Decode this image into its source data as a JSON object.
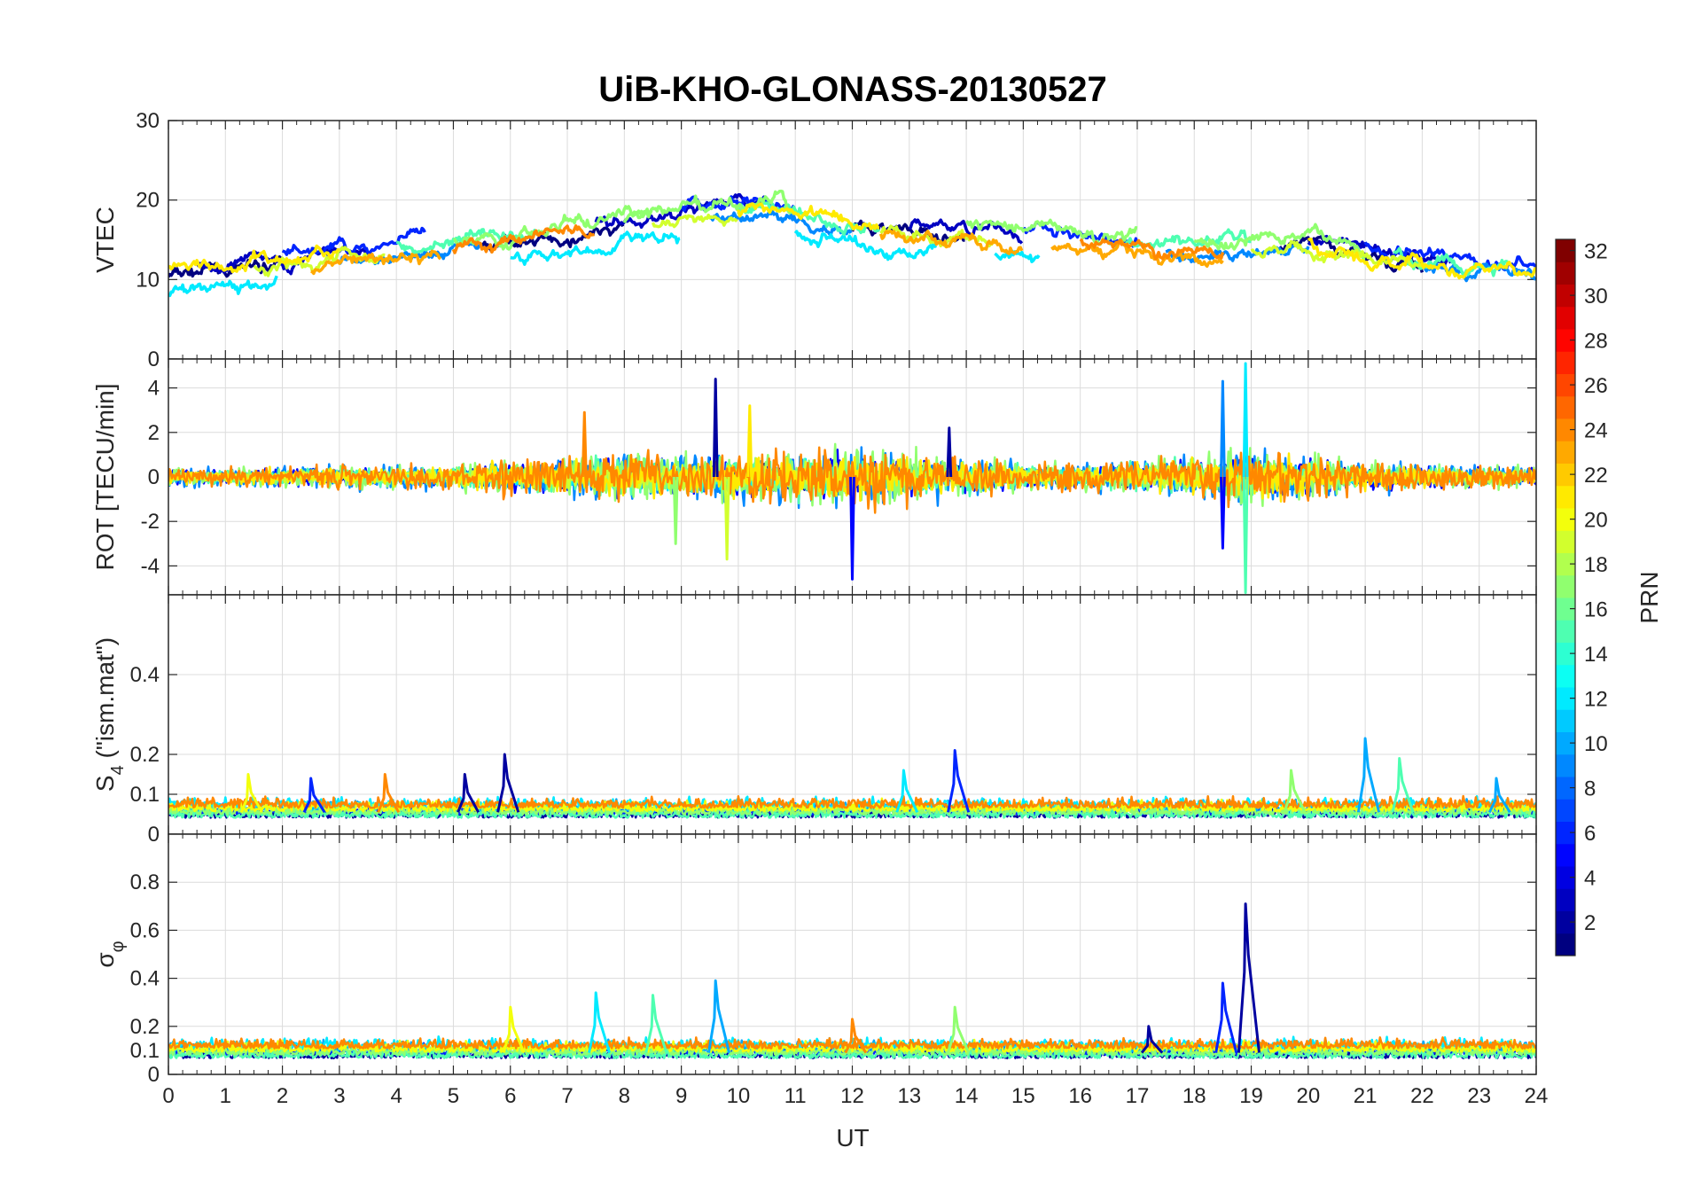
{
  "chart_data": {
    "type": "line",
    "title": "UiB-KHO-GLONASS-20130527",
    "xlabel": "UT",
    "xlim": [
      0,
      24
    ],
    "xticks": [
      "0",
      "1",
      "2",
      "3",
      "4",
      "5",
      "6",
      "7",
      "8",
      "9",
      "10",
      "11",
      "12",
      "13",
      "14",
      "15",
      "16",
      "17",
      "18",
      "19",
      "20",
      "21",
      "22",
      "23",
      "24"
    ],
    "grid": true,
    "colorbar": {
      "label": "PRN",
      "colormap": "jet",
      "range": [
        1,
        32
      ],
      "ticks": [
        "2",
        "4",
        "6",
        "8",
        "10",
        "12",
        "14",
        "16",
        "18",
        "20",
        "22",
        "24",
        "26",
        "28",
        "30",
        "32"
      ]
    },
    "panels": [
      {
        "ylabel": "VTEC",
        "ylim": [
          0,
          30
        ],
        "yticks": [
          "0",
          "10",
          "20",
          "30"
        ],
        "trend": [
          [
            0,
            11
          ],
          [
            3,
            13
          ],
          [
            6,
            15
          ],
          [
            9,
            18
          ],
          [
            10.5,
            19
          ],
          [
            12,
            17
          ],
          [
            15,
            15.5
          ],
          [
            18,
            14
          ],
          [
            20,
            14.5
          ],
          [
            22,
            12
          ],
          [
            24,
            11
          ]
        ],
        "series": [
          {
            "prn": 1,
            "segments": [
              [
                0,
                2
              ],
              [
                5.5,
                8
              ],
              [
                12,
                14
              ],
              [
                19.5,
                22
              ]
            ],
            "offset": -0.5
          },
          {
            "prn": 3,
            "segments": [
              [
                0.5,
                3.5
              ],
              [
                7.5,
                10.5
              ],
              [
                13,
                15
              ],
              [
                20,
                22.5
              ]
            ],
            "offset": 0.5
          },
          {
            "prn": 6,
            "segments": [
              [
                2,
                4.5
              ],
              [
                9,
                11
              ],
              [
                15,
                17
              ],
              [
                21,
                24
              ]
            ],
            "offset": 1.0
          },
          {
            "prn": 9,
            "segments": [
              [
                3,
                5.5
              ],
              [
                9.5,
                12
              ],
              [
                17.5,
                20
              ],
              [
                22,
                24
              ]
            ],
            "offset": -0.8
          },
          {
            "prn": 12,
            "segments": [
              [
                0,
                1.9
              ],
              [
                6,
                9
              ],
              [
                11,
                13.5
              ],
              [
                14.5,
                15.3
              ]
            ],
            "offset": -2.5
          },
          {
            "prn": 15,
            "segments": [
              [
                4,
                6.5
              ],
              [
                10,
                12.5
              ],
              [
                16.5,
                19
              ],
              [
                21.5,
                23.5
              ]
            ],
            "offset": 0.3
          },
          {
            "prn": 17,
            "segments": [
              [
                5,
                8.5
              ],
              [
                8,
                11
              ],
              [
                14,
                17
              ],
              [
                18,
                21
              ]
            ],
            "offset": 0.8
          },
          {
            "prn": 19,
            "segments": [
              [
                1.5,
                3.8
              ],
              [
                8.5,
                10
              ],
              [
                12.5,
                14.5
              ],
              [
                19,
                22
              ]
            ],
            "offset": -0.6
          },
          {
            "prn": 21,
            "segments": [
              [
                0,
                3
              ],
              [
                10,
                12.5
              ],
              [
                20,
                24
              ]
            ],
            "offset": 0.2
          },
          {
            "prn": 23,
            "segments": [
              [
                2.5,
                4.8
              ],
              [
                12.5,
                15
              ],
              [
                15.5,
                18.5
              ]
            ],
            "offset": -1.2
          },
          {
            "prn": 24,
            "segments": [
              [
                5,
                7.5
              ],
              [
                16,
                18.5
              ]
            ],
            "offset": -0.4
          }
        ]
      },
      {
        "ylabel": "ROT [TECU/min]",
        "ylim": [
          -5.3,
          5.3
        ],
        "yticks": [
          "-4",
          "-2",
          "0",
          "2",
          "4"
        ],
        "noise": [
          [
            0,
            0.5
          ],
          [
            5,
            0.8
          ],
          [
            8,
            1.6
          ],
          [
            10,
            1.4
          ],
          [
            12,
            1.8
          ],
          [
            14,
            1.2
          ],
          [
            16,
            0.8
          ],
          [
            18.5,
            1.5
          ],
          [
            19,
            1.8
          ],
          [
            21,
            0.9
          ],
          [
            24,
            0.6
          ]
        ],
        "spikes": [
          [
            9.6,
            4.4
          ],
          [
            12.0,
            -4.6
          ],
          [
            18.5,
            4.3
          ],
          [
            18.9,
            5.1
          ],
          [
            18.9,
            -5.2
          ],
          [
            8.9,
            -3.0
          ],
          [
            9.8,
            -3.7
          ],
          [
            10.2,
            3.2
          ],
          [
            7.3,
            2.9
          ],
          [
            13.7,
            2.2
          ],
          [
            18.5,
            -3.2
          ]
        ],
        "series": [
          {
            "prn": 2
          },
          {
            "prn": 5
          },
          {
            "prn": 9
          },
          {
            "prn": 12
          },
          {
            "prn": 15
          },
          {
            "prn": 17
          },
          {
            "prn": 19
          },
          {
            "prn": 21
          },
          {
            "prn": 24
          }
        ]
      },
      {
        "ylabel": "S4 (\"ism.mat\")",
        "ylabel_main": "S",
        "ylabel_sub": "4",
        "ylabel_rest": " (\"ism.mat\")",
        "ylim": [
          0,
          0.6
        ],
        "yticks": [
          "0",
          "0.1",
          "0.2",
          "0.4"
        ],
        "base": 0.055,
        "spikes": [
          [
            5.9,
            0.2
          ],
          [
            13.8,
            0.21
          ],
          [
            21.0,
            0.24
          ],
          [
            12.9,
            0.16
          ],
          [
            21.6,
            0.19
          ],
          [
            19.7,
            0.16
          ],
          [
            1.4,
            0.15
          ],
          [
            3.8,
            0.15
          ],
          [
            5.2,
            0.15
          ],
          [
            2.5,
            0.14
          ],
          [
            23.3,
            0.14
          ]
        ],
        "series": [
          {
            "prn": 2
          },
          {
            "prn": 6
          },
          {
            "prn": 10
          },
          {
            "prn": 12
          },
          {
            "prn": 15
          },
          {
            "prn": 17
          },
          {
            "prn": 20
          },
          {
            "prn": 24
          }
        ]
      },
      {
        "ylabel": "σφ",
        "ylabel_main": "σ",
        "ylabel_sub": "φ",
        "ylim": [
          0,
          1
        ],
        "yticks": [
          "0",
          "0.1",
          "0.2",
          "0.4",
          "0.6",
          "0.8"
        ],
        "base": 0.09,
        "spikes": [
          [
            18.9,
            0.71
          ],
          [
            18.5,
            0.38
          ],
          [
            9.6,
            0.39
          ],
          [
            7.5,
            0.34
          ],
          [
            8.5,
            0.33
          ],
          [
            13.8,
            0.28
          ],
          [
            6.0,
            0.28
          ],
          [
            12.0,
            0.23
          ],
          [
            17.2,
            0.2
          ]
        ],
        "series": [
          {
            "prn": 2
          },
          {
            "prn": 6
          },
          {
            "prn": 10
          },
          {
            "prn": 12
          },
          {
            "prn": 15
          },
          {
            "prn": 17
          },
          {
            "prn": 20
          },
          {
            "prn": 24
          }
        ]
      }
    ]
  }
}
